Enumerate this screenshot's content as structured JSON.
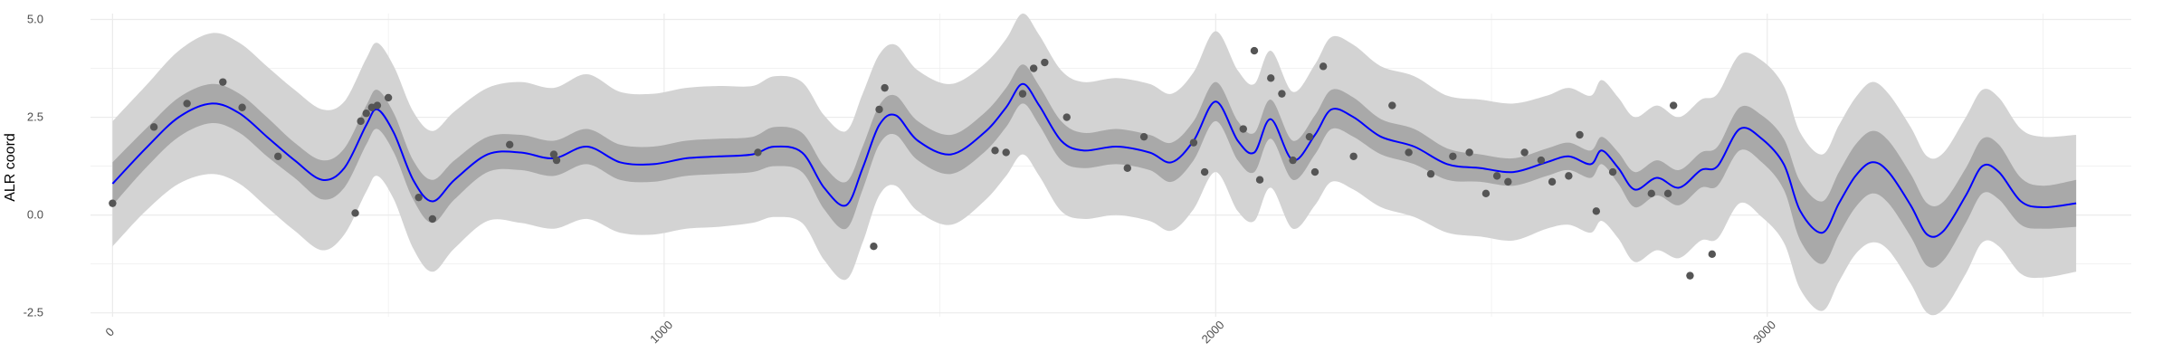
{
  "chart_data": {
    "type": "line",
    "title": "",
    "xlabel": "",
    "ylabel": "ALR coord",
    "xlim": [
      -40,
      3660
    ],
    "ylim": [
      -2.6,
      5.15
    ],
    "grid": true,
    "x_ticks": [
      0,
      1000,
      2000,
      3000
    ],
    "x_tick_labels": [
      "0",
      "1000",
      "2000",
      "3000"
    ],
    "x_tick_label_rotation": -45,
    "y_ticks": [
      -2.5,
      0,
      2.5,
      5
    ],
    "y_tick_labels": [
      "-2.5",
      "0.0",
      "2.5",
      "5.0"
    ],
    "colors": {
      "mean_line": "#0000ff",
      "inner_band": "#a9a9a9",
      "outer_band": "#d3d3d3",
      "points": "#555555",
      "grid": "#ebebeb"
    },
    "series": [
      {
        "role": "mean",
        "x": [
          0,
          60,
          120,
          180,
          230,
          280,
          330,
          380,
          420,
          460,
          480,
          510,
          545,
          580,
          620,
          680,
          740,
          800,
          860,
          920,
          980,
          1040,
          1100,
          1160,
          1200,
          1250,
          1290,
          1330,
          1360,
          1390,
          1420,
          1460,
          1520,
          1580,
          1620,
          1650,
          1680,
          1720,
          1760,
          1820,
          1880,
          1920,
          1960,
          2000,
          2040,
          2070,
          2100,
          2140,
          2180,
          2210,
          2250,
          2300,
          2360,
          2420,
          2480,
          2540,
          2600,
          2640,
          2680,
          2700,
          2730,
          2760,
          2800,
          2840,
          2880,
          2910,
          2950,
          2990,
          3030,
          3060,
          3100,
          3130,
          3160,
          3190,
          3220,
          3260,
          3290,
          3320,
          3360,
          3390,
          3420,
          3460,
          3500,
          3560
        ],
        "y": [
          0.8,
          1.7,
          2.5,
          2.85,
          2.6,
          2.0,
          1.4,
          0.9,
          1.2,
          2.3,
          2.7,
          2.1,
          0.9,
          0.35,
          0.9,
          1.55,
          1.6,
          1.45,
          1.75,
          1.35,
          1.3,
          1.45,
          1.5,
          1.55,
          1.75,
          1.6,
          0.7,
          0.25,
          1.2,
          2.3,
          2.55,
          1.9,
          1.55,
          2.1,
          2.75,
          3.35,
          2.8,
          1.9,
          1.65,
          1.75,
          1.6,
          1.35,
          1.9,
          2.9,
          1.9,
          1.6,
          2.45,
          1.4,
          2.05,
          2.7,
          2.5,
          2.0,
          1.75,
          1.3,
          1.2,
          1.1,
          1.35,
          1.5,
          1.3,
          1.65,
          1.2,
          0.65,
          0.95,
          0.7,
          1.15,
          1.25,
          2.2,
          1.95,
          1.3,
          0.1,
          -0.45,
          0.3,
          1.0,
          1.35,
          1.1,
          0.25,
          -0.5,
          -0.4,
          0.5,
          1.25,
          1.1,
          0.35,
          0.2,
          0.3
        ]
      },
      {
        "role": "inner_band_halfwidth",
        "y": [
          0.55,
          0.5,
          0.5,
          0.5,
          0.5,
          0.5,
          0.45,
          0.5,
          0.5,
          0.5,
          0.5,
          0.5,
          0.5,
          0.55,
          0.5,
          0.45,
          0.45,
          0.45,
          0.45,
          0.45,
          0.45,
          0.45,
          0.45,
          0.45,
          0.5,
          0.5,
          0.55,
          0.6,
          0.55,
          0.5,
          0.5,
          0.5,
          0.5,
          0.5,
          0.5,
          0.5,
          0.5,
          0.5,
          0.45,
          0.45,
          0.45,
          0.5,
          0.5,
          0.5,
          0.5,
          0.5,
          0.5,
          0.5,
          0.5,
          0.5,
          0.5,
          0.45,
          0.45,
          0.4,
          0.35,
          0.35,
          0.35,
          0.35,
          0.35,
          0.35,
          0.4,
          0.45,
          0.45,
          0.45,
          0.45,
          0.5,
          0.55,
          0.6,
          0.65,
          0.75,
          0.8,
          0.8,
          0.8,
          0.8,
          0.8,
          0.8,
          0.8,
          0.75,
          0.7,
          0.7,
          0.7,
          0.6,
          0.55,
          0.6
        ]
      },
      {
        "role": "outer_band_halfwidth",
        "y": [
          1.6,
          1.6,
          1.7,
          1.8,
          1.8,
          1.8,
          1.8,
          1.8,
          1.7,
          1.7,
          1.7,
          1.7,
          1.75,
          1.8,
          1.75,
          1.7,
          1.8,
          1.8,
          1.85,
          1.8,
          1.8,
          1.8,
          1.8,
          1.75,
          1.8,
          1.8,
          1.85,
          1.9,
          1.9,
          1.8,
          1.8,
          1.8,
          1.8,
          1.75,
          1.75,
          1.8,
          1.8,
          1.8,
          1.75,
          1.75,
          1.75,
          1.75,
          1.75,
          1.8,
          1.8,
          1.75,
          1.75,
          1.75,
          1.8,
          1.85,
          1.85,
          1.8,
          1.8,
          1.75,
          1.75,
          1.75,
          1.7,
          1.75,
          1.75,
          1.8,
          1.8,
          1.85,
          1.85,
          1.8,
          1.8,
          1.85,
          1.9,
          2.0,
          2.0,
          2.0,
          2.0,
          2.0,
          2.0,
          2.05,
          2.0,
          2.0,
          2.0,
          2.0,
          2.0,
          1.95,
          1.9,
          1.85,
          1.8,
          1.75
        ]
      }
    ],
    "points": {
      "x": [
        0,
        75,
        135,
        200,
        235,
        300,
        440,
        450,
        460,
        470,
        480,
        500,
        555,
        580,
        720,
        800,
        805,
        1170,
        1380,
        1390,
        1400,
        1600,
        1620,
        1650,
        1670,
        1690,
        1730,
        1840,
        1870,
        1960,
        1980,
        2050,
        2070,
        2080,
        2100,
        2120,
        2140,
        2170,
        2180,
        2195,
        2250,
        2320,
        2350,
        2390,
        2430,
        2460,
        2490,
        2510,
        2530,
        2560,
        2590,
        2610,
        2640,
        2660,
        2690,
        2720,
        2790,
        2820,
        2830,
        2860,
        2900
      ],
      "y": [
        0.3,
        2.25,
        2.85,
        3.4,
        2.75,
        1.5,
        0.05,
        2.4,
        2.6,
        2.75,
        2.8,
        3.0,
        0.45,
        -0.1,
        1.8,
        1.55,
        1.4,
        1.6,
        -0.8,
        2.7,
        3.25,
        1.65,
        1.6,
        3.1,
        3.75,
        3.9,
        2.5,
        1.2,
        2.0,
        1.85,
        1.1,
        2.2,
        4.2,
        0.9,
        3.5,
        3.1,
        1.4,
        2.0,
        1.1,
        3.8,
        1.5,
        2.8,
        1.6,
        1.05,
        1.5,
        1.6,
        0.55,
        1.0,
        0.85,
        1.6,
        1.4,
        0.85,
        1.0,
        2.05,
        0.1,
        1.1,
        0.55,
        0.55,
        2.8,
        -1.55,
        -1.0
      ]
    }
  }
}
